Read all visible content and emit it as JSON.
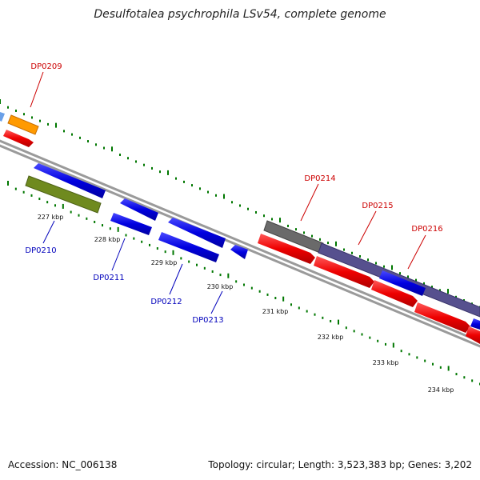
{
  "title": "Desulfotalea psychrophila LSv54, complete genome",
  "footer": {
    "accession": "Accession: NC_006138",
    "topology": "Topology: circular; Length: 3,523,383 bp; Genes: 3,202"
  },
  "colors": {
    "forward_gene": "#e00000",
    "reverse_gene": "#0000dd",
    "backbone": "#808080",
    "ticks": "#007700",
    "forward_label": "#cc0000",
    "reverse_label": "#0000bb"
  },
  "scale_labels": [
    "227 kbp",
    "228 kbp",
    "229 kbp",
    "230 kbp",
    "231 kbp",
    "232 kbp",
    "233 kbp",
    "234 kbp"
  ],
  "gene_labels": {
    "forward": [
      "DP0209",
      "DP0214",
      "DP0215",
      "DP0216"
    ],
    "reverse": [
      "DP0210",
      "DP0211",
      "DP0212",
      "DP0213"
    ]
  }
}
